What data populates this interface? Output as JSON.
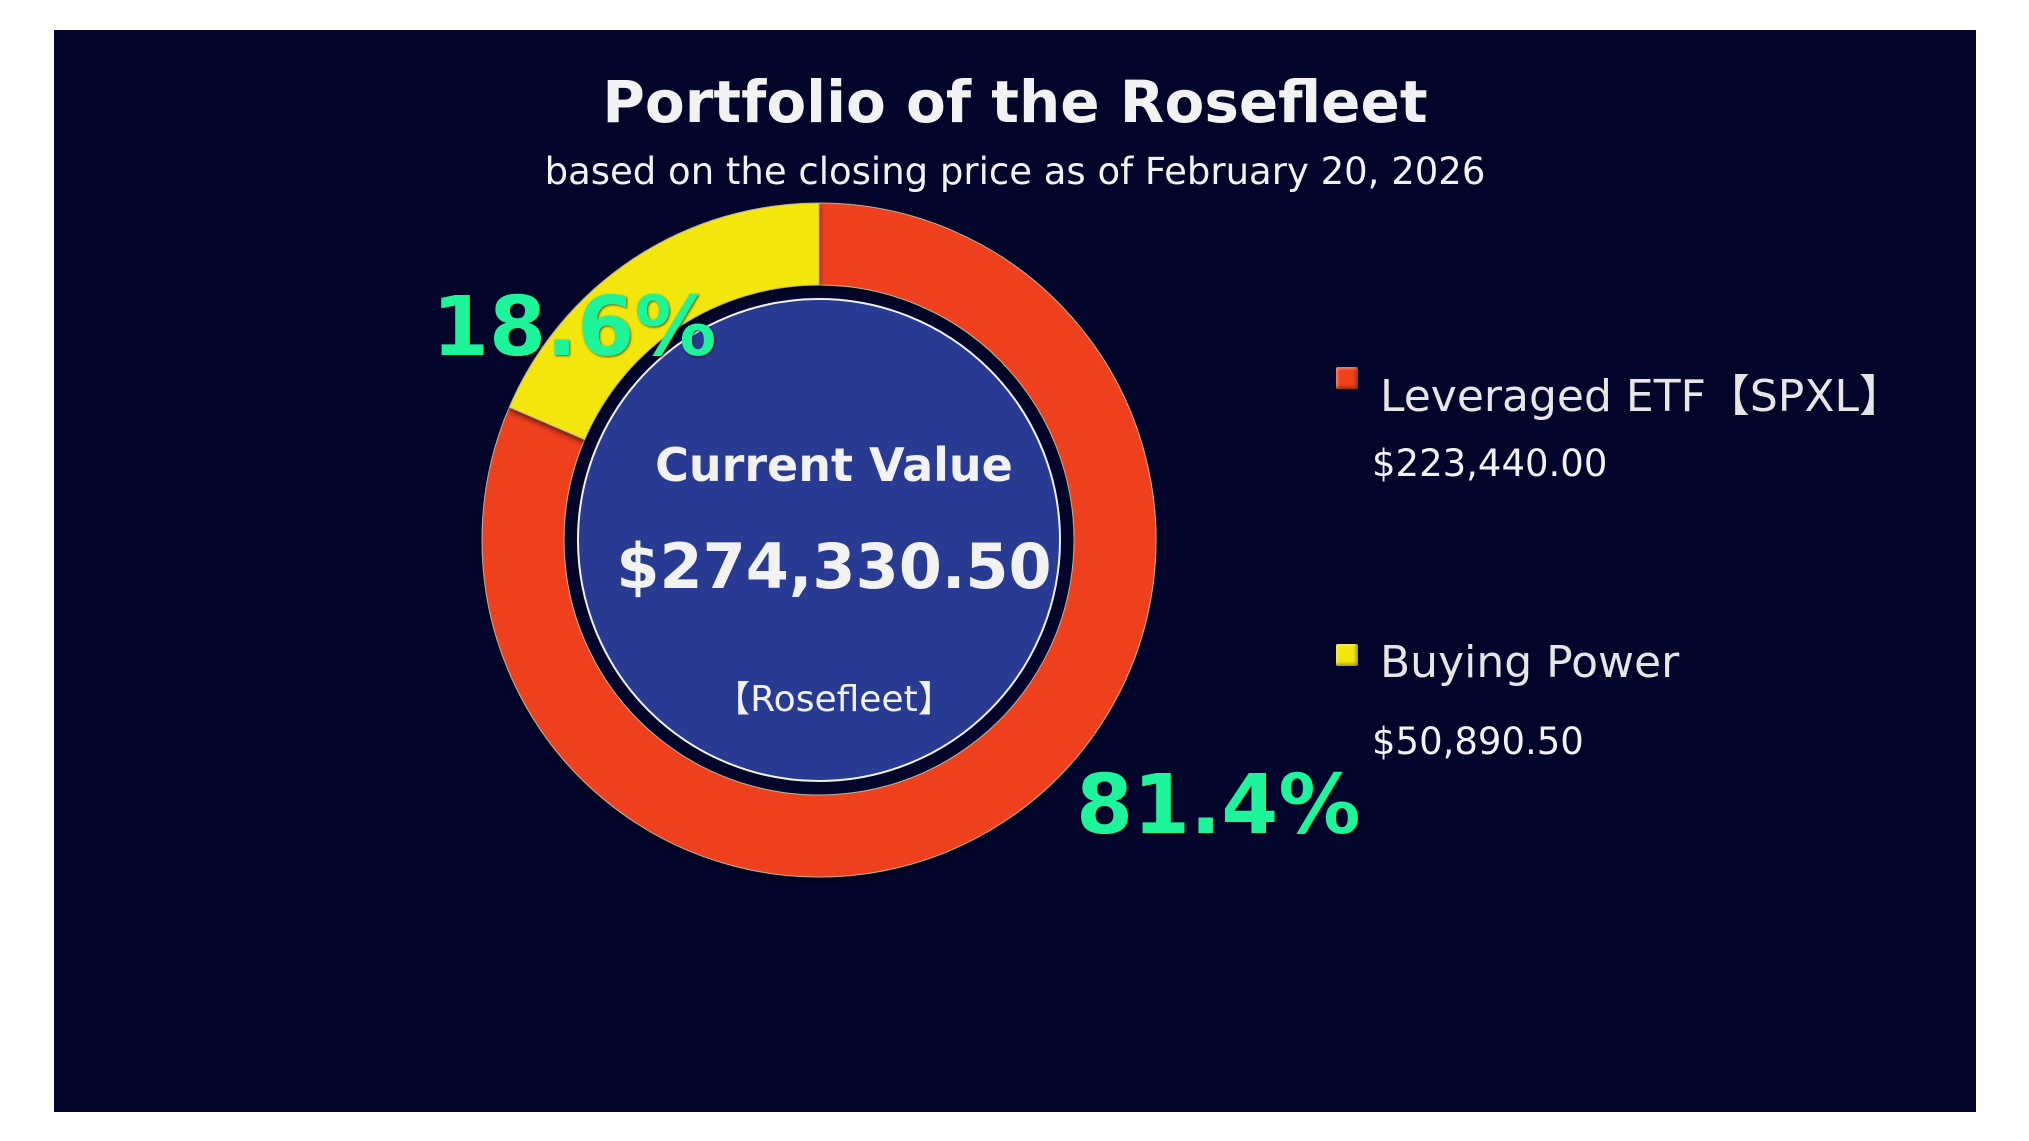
{
  "chart_data": {
    "type": "pie",
    "variant": "donut",
    "title": "Portfolio of the Rosefleet",
    "subtitle": "based on the closing price as of February 20, 2026",
    "center": {
      "heading": "Current Value",
      "total": "$274,330.50",
      "owner": "【Rosefleet】"
    },
    "slices": [
      {
        "name": "Leveraged ETF【SPXL】",
        "value": 223440.0,
        "value_label": "$223,440.00",
        "percent": 81.4,
        "percent_label": "81.4%",
        "color": "#ee411c"
      },
      {
        "name": "Buying Power",
        "value": 50890.5,
        "value_label": "$50,890.50",
        "percent": 18.6,
        "percent_label": "18.6%",
        "color": "#f2e60a"
      }
    ],
    "legend_position": "right"
  },
  "colors": {
    "background": "#03052b",
    "center_fill": "#283a92",
    "percent_label": "#1ef59a",
    "text": "#f2f2f2"
  }
}
